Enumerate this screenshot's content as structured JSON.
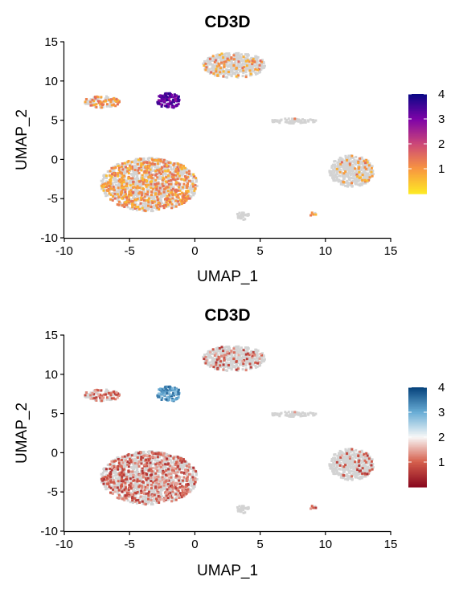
{
  "chart_data": [
    {
      "type": "scatter",
      "title": "CD3D",
      "xlabel": "UMAP_1",
      "ylabel": "UMAP_2",
      "xlim": [
        -10,
        15
      ],
      "ylim": [
        -10,
        15
      ],
      "xticks": [
        "-10",
        "-5",
        "0",
        "5",
        "10",
        "15"
      ],
      "yticks": [
        "-10",
        "-5",
        "0",
        "5",
        "10",
        "15"
      ],
      "background_color": "#d3d3d3",
      "colorscale": {
        "name": "plasma-like",
        "stops": [
          "#fde725",
          "#f89441",
          "#cc4778",
          "#7e03a8",
          "#0d0887"
        ],
        "range": [
          0,
          4
        ],
        "ticks": [
          "1",
          "2",
          "3",
          "4"
        ]
      },
      "clusters": [
        {
          "name": "top",
          "cx": 3.0,
          "cy": 12.0,
          "rx": 2.4,
          "ry": 1.6,
          "expr_frac": 0.12,
          "expr_mean": 1.0
        },
        {
          "name": "left-small",
          "cx": -7.1,
          "cy": 7.3,
          "rx": 1.4,
          "ry": 0.75,
          "expr_frac": 0.32,
          "expr_mean": 1.0
        },
        {
          "name": "purple-hook",
          "cx": -2.0,
          "cy": 7.5,
          "rx": 0.9,
          "ry": 1.0,
          "expr_frac": 1.0,
          "expr_mean": 3.3
        },
        {
          "name": "big-bottom",
          "cx": -3.5,
          "cy": -3.2,
          "rx": 3.7,
          "ry": 3.4,
          "expr_frac": 0.33,
          "expr_mean": 1.0
        },
        {
          "name": "right",
          "cx": 12.0,
          "cy": -1.5,
          "rx": 1.7,
          "ry": 2.0,
          "expr_frac": 0.1,
          "expr_mean": 1.0
        },
        {
          "name": "streak",
          "cx": 7.5,
          "cy": 4.9,
          "rx": 1.8,
          "ry": 0.3,
          "expr_frac": 0.03,
          "expr_mean": 1.0
        },
        {
          "name": "dot-a",
          "cx": 3.7,
          "cy": -7.2,
          "rx": 0.5,
          "ry": 0.5,
          "expr_frac": 0.0,
          "expr_mean": 1.0
        },
        {
          "name": "dot-b",
          "cx": 9.0,
          "cy": -7.0,
          "rx": 0.3,
          "ry": 0.2,
          "expr_frac": 0.7,
          "expr_mean": 1.0
        }
      ]
    },
    {
      "type": "scatter",
      "title": "CD3D",
      "xlabel": "UMAP_1",
      "ylabel": "UMAP_2",
      "xlim": [
        -10,
        15
      ],
      "ylim": [
        -10,
        15
      ],
      "xticks": [
        "-10",
        "-5",
        "0",
        "5",
        "10",
        "15"
      ],
      "yticks": [
        "-10",
        "-5",
        "0",
        "5",
        "10",
        "15"
      ],
      "background_color": "#d3d3d3",
      "colorscale": {
        "name": "RdBu-like",
        "stops": [
          "#8b0a1f",
          "#d6604d",
          "#f7f7f7",
          "#6aaed6",
          "#08457e"
        ],
        "range": [
          0,
          4
        ],
        "ticks": [
          "1",
          "2",
          "3",
          "4"
        ]
      },
      "clusters": [
        {
          "name": "top",
          "cx": 3.0,
          "cy": 12.0,
          "rx": 2.4,
          "ry": 1.6,
          "expr_frac": 0.12,
          "expr_mean": 1.0
        },
        {
          "name": "left-small",
          "cx": -7.1,
          "cy": 7.3,
          "rx": 1.4,
          "ry": 0.75,
          "expr_frac": 0.32,
          "expr_mean": 1.0
        },
        {
          "name": "blue-hook",
          "cx": -2.0,
          "cy": 7.5,
          "rx": 0.9,
          "ry": 1.0,
          "expr_frac": 1.0,
          "expr_mean": 3.2
        },
        {
          "name": "big-bottom",
          "cx": -3.5,
          "cy": -3.2,
          "rx": 3.7,
          "ry": 3.4,
          "expr_frac": 0.33,
          "expr_mean": 1.0
        },
        {
          "name": "right",
          "cx": 12.0,
          "cy": -1.5,
          "rx": 1.7,
          "ry": 2.0,
          "expr_frac": 0.1,
          "expr_mean": 1.0
        },
        {
          "name": "streak",
          "cx": 7.5,
          "cy": 4.9,
          "rx": 1.8,
          "ry": 0.3,
          "expr_frac": 0.03,
          "expr_mean": 1.0
        },
        {
          "name": "dot-a",
          "cx": 3.7,
          "cy": -7.2,
          "rx": 0.5,
          "ry": 0.5,
          "expr_frac": 0.0,
          "expr_mean": 1.0
        },
        {
          "name": "dot-b",
          "cx": 9.0,
          "cy": -7.0,
          "rx": 0.3,
          "ry": 0.2,
          "expr_frac": 0.7,
          "expr_mean": 1.0
        }
      ]
    }
  ]
}
